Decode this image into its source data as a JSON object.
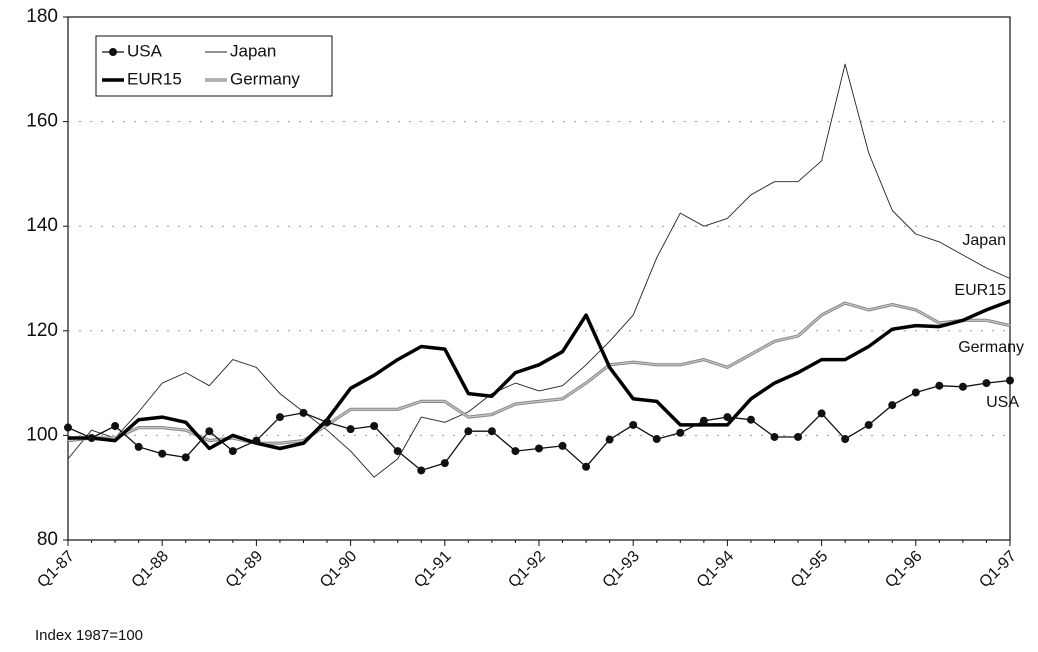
{
  "chart_data": {
    "type": "line",
    "categories": [
      "Q1-87",
      null,
      null,
      null,
      "Q1-88",
      null,
      null,
      null,
      "Q1-89",
      null,
      null,
      null,
      "Q1-90",
      null,
      null,
      null,
      "Q1-91",
      null,
      null,
      null,
      "Q1-92",
      null,
      null,
      null,
      "Q1-93",
      null,
      null,
      null,
      "Q1-94",
      null,
      null,
      null,
      "Q1-95",
      null,
      null,
      null,
      "Q1-96",
      null,
      null,
      null,
      "Q1-97"
    ],
    "series": [
      {
        "name": "USA",
        "color": "#111111",
        "line_width": 1.3,
        "marker": "circle",
        "values": [
          101.5,
          99.5,
          101.8,
          97.8,
          96.5,
          95.8,
          100.8,
          97,
          99,
          103.5,
          104.3,
          102.5,
          101.2,
          101.8,
          97,
          93.3,
          94.7,
          100.8,
          100.8,
          97,
          97.5,
          98,
          94,
          99.2,
          102,
          99.3,
          100.5,
          102.8,
          103.5,
          103,
          99.7,
          99.7,
          104.2,
          99.3,
          102,
          105.8,
          108.2,
          109.5,
          109.3,
          110,
          110.5
        ]
      },
      {
        "name": "Japan",
        "color": "#222222",
        "line_width": 0.9,
        "values": [
          95.5,
          101,
          99.5,
          104.5,
          110,
          112,
          109.5,
          114.5,
          113,
          108,
          104.5,
          101,
          97,
          92,
          95.5,
          103.5,
          102.5,
          104.5,
          108,
          110,
          108.5,
          109.5,
          113.5,
          118,
          123,
          134,
          142.5,
          140,
          141.5,
          146,
          148.5,
          148.5,
          152.5,
          171,
          154,
          143,
          138.5,
          137,
          134.5,
          132,
          130
        ]
      },
      {
        "name": "EUR15",
        "color": "#000000",
        "line_width": 3.5,
        "values": [
          99.5,
          99.5,
          99,
          103,
          103.5,
          102.5,
          97.5,
          100,
          98.5,
          97.5,
          98.5,
          103,
          109,
          111.5,
          114.5,
          117,
          116.5,
          108,
          107.5,
          112,
          113.5,
          116,
          123,
          113,
          107,
          106.5,
          102,
          102,
          102,
          107,
          110,
          112,
          114.5,
          114.5,
          117,
          120.3,
          121,
          120.8,
          122,
          124,
          125.7
        ]
      },
      {
        "name": "Germany",
        "color": "#888888",
        "line_width": 2.6,
        "values": [
          99,
          99.5,
          99.5,
          101.5,
          101.5,
          101,
          99,
          99.5,
          98.5,
          98.5,
          99,
          102,
          105,
          105,
          105,
          106.5,
          106.5,
          103.5,
          104,
          106,
          106.5,
          107,
          110,
          113.5,
          114,
          113.5,
          113.5,
          114.5,
          113,
          115.5,
          118,
          119,
          123,
          125.3,
          124,
          125,
          124,
          121.5,
          122,
          122,
          121
        ]
      }
    ],
    "ylim": [
      80,
      180
    ],
    "yticks": [
      80,
      100,
      120,
      140,
      160,
      180
    ],
    "grid": true,
    "legend": "upper left",
    "annotations": [
      "Japan",
      "EUR15",
      "Germany",
      "USA"
    ],
    "note": "Index 1987=100"
  }
}
